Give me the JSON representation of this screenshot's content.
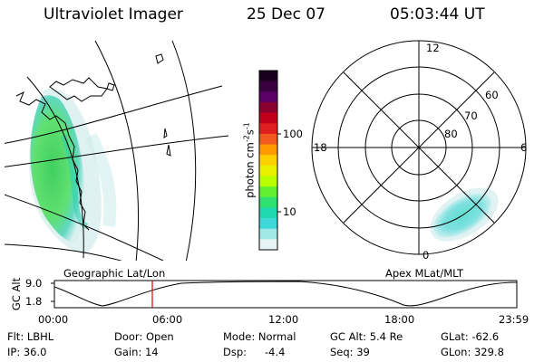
{
  "header": {
    "instrument": "Ultraviolet Imager",
    "date": "25 Dec 07",
    "time": "05:03:44 UT"
  },
  "colorbar": {
    "unit_label": "photon cm",
    "unit_exp1": "-2",
    "unit_s": "s",
    "unit_exp2": "-1",
    "tick_high": "100",
    "tick_low": "10",
    "colors": [
      "#1a0020",
      "#3b0040",
      "#5a0066",
      "#8a0030",
      "#c0001a",
      "#e02020",
      "#f05a20",
      "#ff9a00",
      "#ffd000",
      "#e8f000",
      "#b8ff00",
      "#60f030",
      "#30e070",
      "#20d8b0",
      "#40d8d8",
      "#a0e8e8",
      "#e8f4f4"
    ]
  },
  "polar_plot": {
    "label_top": "12",
    "label_left": "18",
    "label_right": "6",
    "label_bottom": "0",
    "ring_60": "60",
    "ring_70": "70",
    "ring_80": "80"
  },
  "map_caption": "Geographic Lat/Lon",
  "polar_caption": "Apex MLat/MLT",
  "altitude_strip": {
    "axis_label": "GC Alt",
    "y_top": "9.0",
    "y_bottom": "1.8",
    "x_ticks": [
      "00:00",
      "06:00",
      "12:00",
      "18:00",
      "23:59"
    ]
  },
  "info": {
    "flt": "Flt: LBHL",
    "ip": "IP: 36.0",
    "door": "Door: Open",
    "gain": "Gain: 14",
    "mode": "Mode: Normal",
    "dsp_label": "Dsp:",
    "dsp_value": "-4.4",
    "gc_alt": "GC Alt: 5.4 Re",
    "seq": "Seq: 39",
    "glat": "GLat: -62.6",
    "glon": "GLon: 329.8"
  }
}
